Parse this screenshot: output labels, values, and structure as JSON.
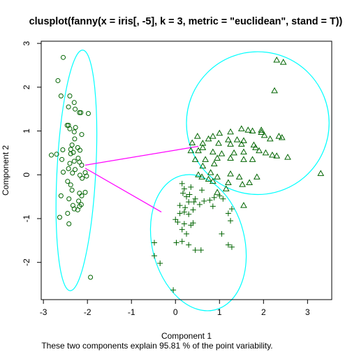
{
  "chart_data": {
    "type": "scatter",
    "title": "clusplot(fanny(x = iris[, -5], k = 3, metric = \"euclidean\", stand = T))",
    "xlabel": "Component 1",
    "ylabel": "Component 2",
    "subtitle": "These two components explain 95.81 % of the point variability.",
    "xlim": [
      -3.05,
      3.55
    ],
    "ylim": [
      -2.85,
      3.05
    ],
    "xticks": [
      -3,
      -2,
      -1,
      0,
      1,
      2,
      3
    ],
    "yticks": [
      -2,
      -1,
      0,
      1,
      2,
      3
    ],
    "grid": false,
    "legend": "none",
    "colors": {
      "points": "#006400",
      "ellipse": "#00ffff",
      "links": "#ff00ff",
      "axis": "#000000"
    },
    "ellipses": [
      {
        "cluster": 1,
        "cx": -2.25,
        "cy": 0.1,
        "rx": 0.44,
        "ry": 2.75,
        "angle_deg": 3
      },
      {
        "cluster": 2,
        "cx": 0.52,
        "cy": -1.55,
        "rx": 1.05,
        "ry": 1.58,
        "angle_deg": -14
      },
      {
        "cluster": 3,
        "cx": 1.87,
        "cy": 1.18,
        "rx": 1.62,
        "ry": 1.63,
        "angle_deg": 0
      }
    ],
    "links": [
      {
        "from": [
          -2.05,
          0.22
        ],
        "to": [
          0.52,
          0.65
        ]
      },
      {
        "from": [
          -2.05,
          0.15
        ],
        "to": [
          -0.32,
          -0.85
        ]
      }
    ],
    "series": [
      {
        "cluster": 1,
        "marker": "circle",
        "points": [
          [
            -2.55,
            2.68
          ],
          [
            -2.67,
            2.15
          ],
          [
            -2.6,
            1.8
          ],
          [
            -2.4,
            1.8
          ],
          [
            -2.3,
            1.65
          ],
          [
            -2.43,
            1.55
          ],
          [
            -2.28,
            1.5
          ],
          [
            -2.18,
            1.42
          ],
          [
            -1.98,
            1.4
          ],
          [
            -2.15,
            1.42
          ],
          [
            -2.4,
            1.05
          ],
          [
            -2.46,
            1.13
          ],
          [
            -2.43,
            1.13
          ],
          [
            -2.27,
            1.08
          ],
          [
            -2.3,
            0.98
          ],
          [
            -2.13,
            0.92
          ],
          [
            -2.29,
            0.82
          ],
          [
            -2.35,
            0.68
          ],
          [
            -2.22,
            0.62
          ],
          [
            -2.38,
            0.58
          ],
          [
            -2.17,
            0.56
          ],
          [
            -2.32,
            0.51
          ],
          [
            -2.38,
            0.48
          ],
          [
            -2.56,
            0.57
          ],
          [
            -2.7,
            0.47
          ],
          [
            -2.82,
            0.45
          ],
          [
            -2.58,
            0.35
          ],
          [
            -2.21,
            0.38
          ],
          [
            -2.3,
            0.31
          ],
          [
            -2.18,
            0.29
          ],
          [
            -2.4,
            0.26
          ],
          [
            -2.13,
            0.22
          ],
          [
            -2.43,
            0.14
          ],
          [
            -2.55,
            0.06
          ],
          [
            -2.28,
            0.12
          ],
          [
            -2.34,
            0.04
          ],
          [
            -2.17,
            -0.01
          ],
          [
            -2.05,
            0.05
          ],
          [
            -2.02,
            -0.03
          ],
          [
            -2.45,
            -0.15
          ],
          [
            -2.12,
            -0.08
          ],
          [
            -2.38,
            -0.23
          ],
          [
            -2.35,
            -0.35
          ],
          [
            -2.18,
            -0.42
          ],
          [
            -2.13,
            -0.48
          ],
          [
            -2.05,
            -0.4
          ],
          [
            -2.42,
            -0.55
          ],
          [
            -2.2,
            -0.6
          ],
          [
            -2.6,
            -0.48
          ],
          [
            -2.33,
            -0.7
          ],
          [
            -2.18,
            -0.72
          ],
          [
            -2.22,
            -0.8
          ],
          [
            -2.45,
            -0.88
          ],
          [
            -2.3,
            -0.78
          ],
          [
            -2.14,
            -0.68
          ],
          [
            -2.63,
            -0.97
          ],
          [
            -2.42,
            -1.12
          ],
          [
            -1.93,
            -2.34
          ]
        ]
      },
      {
        "cluster": 2,
        "marker": "plus",
        "points": [
          [
            0.15,
            -0.2
          ],
          [
            0.2,
            -0.32
          ],
          [
            0.17,
            -0.42
          ],
          [
            0.32,
            -0.45
          ],
          [
            0.45,
            -0.55
          ],
          [
            0.1,
            -0.7
          ],
          [
            0.25,
            -0.5
          ],
          [
            0.3,
            -0.62
          ],
          [
            0.42,
            -0.62
          ],
          [
            0.55,
            -0.68
          ],
          [
            0.65,
            -0.6
          ],
          [
            0.78,
            -0.58
          ],
          [
            0.88,
            -0.52
          ],
          [
            1.0,
            -0.48
          ],
          [
            1.08,
            -0.55
          ],
          [
            0.4,
            -0.8
          ],
          [
            0.22,
            -0.75
          ],
          [
            0.1,
            -0.88
          ],
          [
            0.2,
            -0.85
          ],
          [
            0.3,
            -0.9
          ],
          [
            0.0,
            -1.02
          ],
          [
            0.05,
            -1.08
          ],
          [
            0.2,
            -1.12
          ],
          [
            0.35,
            -1.15
          ],
          [
            0.15,
            -1.25
          ],
          [
            0.25,
            -1.35
          ],
          [
            0.4,
            -1.1
          ],
          [
            0.85,
            -0.72
          ],
          [
            1.2,
            -0.88
          ],
          [
            1.28,
            -0.78
          ],
          [
            1.25,
            -1.05
          ],
          [
            1.05,
            -1.35
          ],
          [
            1.2,
            -1.6
          ],
          [
            -0.48,
            -1.55
          ],
          [
            -0.48,
            -1.85
          ],
          [
            -0.35,
            -2.02
          ],
          [
            0.02,
            -1.55
          ],
          [
            0.15,
            -1.52
          ],
          [
            0.3,
            -1.6
          ],
          [
            0.45,
            -1.72
          ],
          [
            0.58,
            -1.72
          ],
          [
            1.28,
            -1.65
          ],
          [
            -0.05,
            -2.63
          ],
          [
            0.35,
            -0.28
          ],
          [
            0.6,
            -0.35
          ]
        ]
      },
      {
        "cluster": 3,
        "marker": "triangle",
        "points": [
          [
            2.3,
            2.62
          ],
          [
            2.45,
            2.57
          ],
          [
            2.25,
            1.92
          ],
          [
            1.5,
            1.05
          ],
          [
            1.65,
            1.02
          ],
          [
            1.75,
            1.0
          ],
          [
            1.95,
            1.02
          ],
          [
            1.95,
            0.97
          ],
          [
            2.02,
            0.9
          ],
          [
            1.25,
            0.98
          ],
          [
            1.0,
            0.95
          ],
          [
            0.85,
            0.88
          ],
          [
            0.5,
            0.88
          ],
          [
            0.75,
            0.82
          ],
          [
            1.2,
            0.8
          ],
          [
            1.4,
            0.8
          ],
          [
            1.55,
            0.78
          ],
          [
            2.15,
            0.82
          ],
          [
            2.35,
            0.88
          ],
          [
            2.42,
            0.85
          ],
          [
            0.38,
            0.73
          ],
          [
            0.62,
            0.72
          ],
          [
            0.98,
            0.72
          ],
          [
            1.25,
            0.7
          ],
          [
            1.5,
            0.7
          ],
          [
            1.78,
            0.68
          ],
          [
            1.82,
            0.62
          ],
          [
            1.9,
            0.55
          ],
          [
            2.05,
            0.5
          ],
          [
            2.2,
            0.45
          ],
          [
            0.35,
            0.55
          ],
          [
            0.52,
            0.55
          ],
          [
            0.62,
            0.62
          ],
          [
            0.85,
            0.52
          ],
          [
            1.05,
            0.48
          ],
          [
            1.33,
            0.5
          ],
          [
            1.55,
            0.52
          ],
          [
            2.3,
            0.43
          ],
          [
            2.55,
            0.4
          ],
          [
            0.95,
            0.38
          ],
          [
            1.25,
            0.38
          ],
          [
            0.68,
            0.35
          ],
          [
            1.55,
            0.35
          ],
          [
            1.75,
            0.35
          ],
          [
            0.45,
            0.35
          ],
          [
            0.88,
            0.25
          ],
          [
            0.62,
            0.2
          ],
          [
            0.8,
            0.05
          ],
          [
            3.3,
            0.03
          ],
          [
            0.95,
            -0.05
          ],
          [
            0.52,
            0.0
          ],
          [
            0.6,
            -0.05
          ],
          [
            1.25,
            0.02
          ],
          [
            1.45,
            -0.05
          ],
          [
            0.75,
            -0.1
          ],
          [
            0.85,
            -0.15
          ],
          [
            1.2,
            -0.18
          ],
          [
            1.52,
            -0.22
          ],
          [
            1.15,
            -0.32
          ],
          [
            1.68,
            -0.18
          ],
          [
            1.85,
            -0.05
          ],
          [
            0.95,
            -0.4
          ],
          [
            1.55,
            -0.7
          ]
        ]
      }
    ]
  }
}
